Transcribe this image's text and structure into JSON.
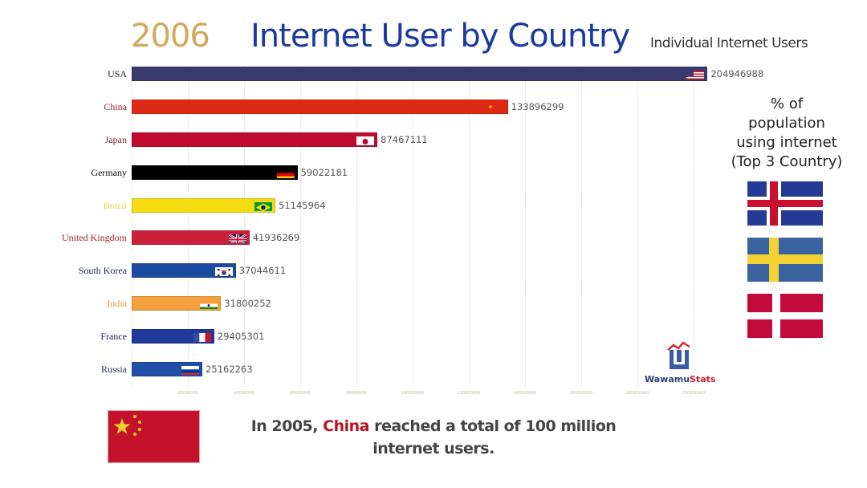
{
  "header": {
    "year": "2006",
    "title": "Internet User by Country",
    "subtitle": "Individual Internet Users"
  },
  "side_panel": {
    "title_lines": [
      "% of",
      "population",
      "using internet",
      "(Top 3 Country)"
    ],
    "top3_flags": [
      "iceland-flag",
      "sweden-flag",
      "denmark-flag"
    ]
  },
  "logo": {
    "part1": "Wawamu",
    "part2": "Stats"
  },
  "fact": {
    "prefix": "In 2005, ",
    "highlight": "China",
    "suffix": " reached a total of 100 million internet users.",
    "flag": "china-flag"
  },
  "chart_data": {
    "type": "bar",
    "orientation": "horizontal",
    "title": "Internet User by Country",
    "subtitle": "Individual Internet Users",
    "year": "2006",
    "xlabel": "",
    "ylabel": "",
    "xlim": [
      0,
      210000000
    ],
    "grid": true,
    "x_ticks": [
      "20000000",
      "40000000",
      "60000000",
      "80000000",
      "100000000",
      "120000000",
      "140000000",
      "160000000",
      "180000000",
      "200000000"
    ],
    "categories": [
      "USA",
      "China",
      "Japan",
      "Germany",
      "Brazil",
      "United Kingdom",
      "South Korea",
      "India",
      "France",
      "Russia"
    ],
    "values": [
      204946988,
      133896299,
      87467111,
      59022181,
      51145964,
      41936269,
      37044611,
      31800252,
      29405301,
      25162263
    ],
    "value_labels": [
      "204946988",
      "133896299",
      "87467111",
      "59022181",
      "51145964",
      "41936269",
      "37044611",
      "31800252",
      "29405301",
      "25162263"
    ],
    "bar_colors": [
      "#3b3a6e",
      "#dd2a16",
      "#c00a2e",
      "#000000",
      "#f6db12",
      "#cc1f3a",
      "#1b4aa0",
      "#f4a13d",
      "#1f3a9a",
      "#1f4fa8"
    ],
    "label_colors": [
      "#222222",
      "#a02030",
      "#8a1a30",
      "#111111",
      "#e8d040",
      "#b0202e",
      "#1a2a5a",
      "#e59a3c",
      "#1a2060",
      "#1a2a5a"
    ],
    "flags": [
      "usa",
      "china",
      "japan",
      "germany",
      "brazil",
      "united-kingdom",
      "south-korea",
      "india",
      "france",
      "russia"
    ]
  }
}
